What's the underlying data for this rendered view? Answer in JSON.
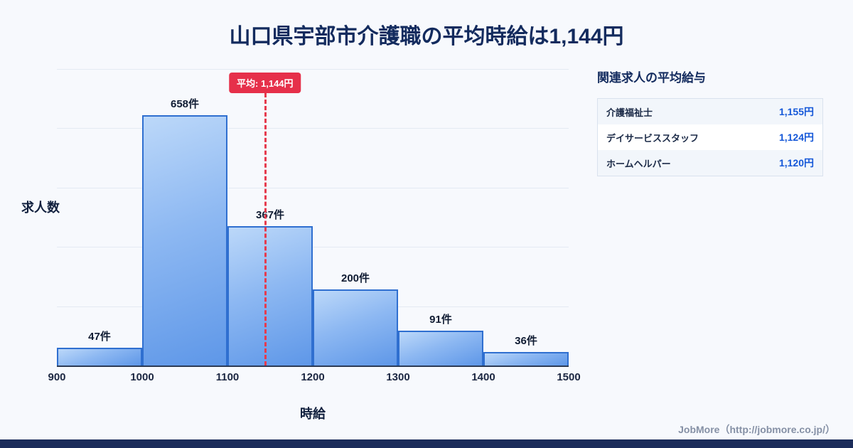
{
  "title": "山口県宇部市介護職の平均時給は1,144円",
  "chart_data": {
    "type": "bar",
    "subtype": "histogram",
    "bin_edges": [
      900,
      1000,
      1100,
      1200,
      1300,
      1400,
      1500
    ],
    "categories": [
      "900-1000",
      "1000-1100",
      "1100-1200",
      "1200-1300",
      "1300-1400",
      "1400-1500"
    ],
    "values": [
      47,
      658,
      367,
      200,
      91,
      36
    ],
    "value_labels": [
      "47件",
      "658件",
      "367件",
      "200件",
      "91件",
      "36件"
    ],
    "x_ticks": [
      "900",
      "1000",
      "1100",
      "1200",
      "1300",
      "1400",
      "1500"
    ],
    "xlabel": "時給",
    "ylabel": "求人数",
    "mean": 1144,
    "mean_label": "平均: 1,144円",
    "grid": "horizontal",
    "legend": "none"
  },
  "side_panel": {
    "title": "関連求人の平均給与",
    "rows": [
      {
        "label": "介護福祉士",
        "value": "1,155円"
      },
      {
        "label": "デイサービススタッフ",
        "value": "1,124円"
      },
      {
        "label": "ホームヘルパー",
        "value": "1,120円"
      }
    ]
  },
  "footer": {
    "credit": "JobMore（http://jobmore.co.jp/）"
  },
  "colors": {
    "accent_red": "#e6304a",
    "bar_border": "#2f6fd0",
    "bar_fill_light": "#bcd8f9",
    "bar_fill_dark": "#5e97e8",
    "title_navy": "#132b5e",
    "value_blue": "#1457d8",
    "footer_strip": "#1b2c5a",
    "background": "#f7f9fd"
  }
}
